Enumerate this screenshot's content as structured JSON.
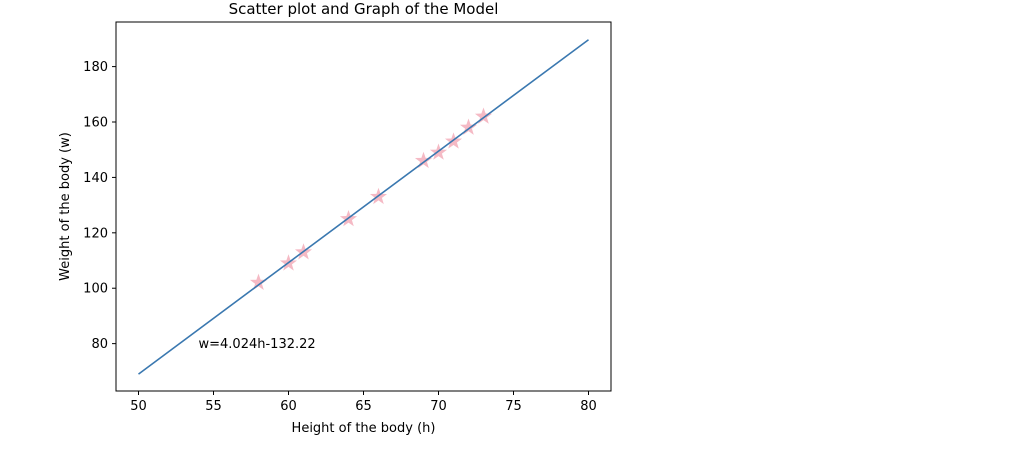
{
  "chart_data": {
    "type": "scatter",
    "title": "Scatter plot and Graph of the Model",
    "xlabel": "Height of the body (h)",
    "ylabel": "Weight of the body (w)",
    "xlim": [
      48.5,
      81.5
    ],
    "ylim": [
      62.9,
      196.1
    ],
    "xticks": [
      50,
      55,
      60,
      65,
      70,
      75,
      80
    ],
    "yticks": [
      80,
      100,
      120,
      140,
      160,
      180
    ],
    "grid": false,
    "colors": {
      "points": "#f4b6c2",
      "line": "#3a78b0"
    },
    "points": [
      {
        "x": 58,
        "y": 102
      },
      {
        "x": 60,
        "y": 109
      },
      {
        "x": 61,
        "y": 113
      },
      {
        "x": 64,
        "y": 125
      },
      {
        "x": 66,
        "y": 133
      },
      {
        "x": 69,
        "y": 146
      },
      {
        "x": 70,
        "y": 149
      },
      {
        "x": 71,
        "y": 153
      },
      {
        "x": 72,
        "y": 158
      },
      {
        "x": 73,
        "y": 162
      }
    ],
    "model_line": {
      "x": [
        50,
        80
      ],
      "y": [
        69.0,
        189.7
      ]
    },
    "annotation": {
      "text": "w=4.024h-132.22",
      "x": 54,
      "y": 80
    }
  }
}
